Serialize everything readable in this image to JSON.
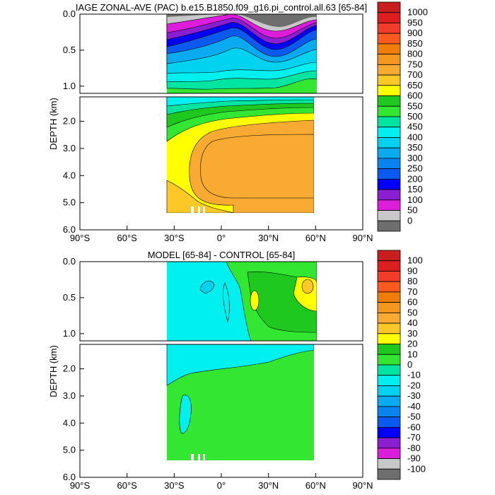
{
  "chart_data": [
    {
      "type": "heatmap",
      "title": "IAGE ZONAL-AVE (PAC) b.e15.B1850.f09_g16.pi_control.all.63 [65-84]",
      "xlabel": "",
      "ylabel": "DEPTH (km)",
      "xlim": [
        -90,
        90
      ],
      "ylim": [
        6.0,
        0.0
      ],
      "x_ticks": [
        "90°S",
        "60°S",
        "30°S",
        "0°",
        "30°N",
        "60°N",
        "90°N"
      ],
      "y_ticks_upper": [
        "0.0",
        "0.5",
        "1.0"
      ],
      "y_ticks_lower": [
        "2.0",
        "3.0",
        "4.0",
        "5.0",
        "6.0"
      ],
      "colorbar_labels": [
        "1000",
        "950",
        "900",
        "850",
        "800",
        "750",
        "700",
        "650",
        "600",
        "550",
        "500",
        "450",
        "400",
        "350",
        "300",
        "250",
        "200",
        "150",
        "100",
        "50",
        "0"
      ],
      "colorbar_colors": [
        "#c81e1e",
        "#dc1e1e",
        "#f03c28",
        "#fa5a1e",
        "#f07d0a",
        "#f5961e",
        "#f8aa32",
        "#fcc828",
        "#ffff00",
        "#1ec81e",
        "#32e632",
        "#00e6a0",
        "#00f0f0",
        "#00d2f0",
        "#0aaaf0",
        "#0a82f0",
        "#0a5af0",
        "#0000fa",
        "#8c1ed2",
        "#dc1edc",
        "#c8c8c8",
        "#6e6e6e"
      ],
      "data_extent_lat": [
        -33,
        62
      ],
      "max_depth_km": 5.4,
      "depth_profile_by_lat": {
        "lat": [
          -33,
          -20,
          -10,
          0,
          10,
          20,
          30,
          40,
          50,
          60
        ],
        "approx_age_at_3km": [
          650,
          700,
          700,
          700,
          700,
          700,
          700,
          700,
          700,
          650
        ],
        "approx_age_at_0_5km": [
          150,
          200,
          250,
          300,
          150,
          250,
          350,
          350,
          250,
          350
        ]
      }
    },
    {
      "type": "heatmap",
      "title": "MODEL [65-84] - CONTROL [65-84]",
      "xlabel": "",
      "ylabel": "DEPTH (km)",
      "xlim": [
        -90,
        90
      ],
      "ylim": [
        6.0,
        0.0
      ],
      "x_ticks": [
        "90°S",
        "60°S",
        "30°S",
        "0°",
        "30°N",
        "60°N",
        "90°N"
      ],
      "y_ticks_upper": [
        "0.0",
        "0.5",
        "1.0"
      ],
      "y_ticks_lower": [
        "2.0",
        "3.0",
        "4.0",
        "5.0",
        "6.0"
      ],
      "colorbar_labels": [
        "100",
        "90",
        "80",
        "70",
        "60",
        "50",
        "40",
        "30",
        "20",
        "10",
        "0",
        "-10",
        "-20",
        "-30",
        "-40",
        "-50",
        "-60",
        "-70",
        "-80",
        "-90",
        "-100"
      ],
      "colorbar_colors": [
        "#c81e1e",
        "#dc1e1e",
        "#f03c28",
        "#fa5a1e",
        "#f07d0a",
        "#f5961e",
        "#f8aa32",
        "#fcc828",
        "#ffff00",
        "#1ec81e",
        "#32e632",
        "#00e6a0",
        "#00f0f0",
        "#00d2f0",
        "#0aaaf0",
        "#0a82f0",
        "#0a5af0",
        "#0000fa",
        "#8c1ed2",
        "#dc1edc",
        "#c8c8c8",
        "#6e6e6e"
      ],
      "data_extent_lat": [
        -33,
        62
      ],
      "max_depth_km": 5.4,
      "features": {
        "surface_max_difference": 40,
        "deep_difference": 0
      }
    }
  ]
}
